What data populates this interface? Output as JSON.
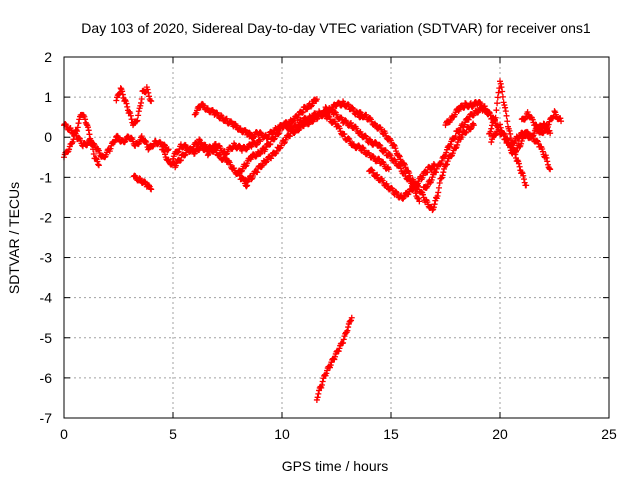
{
  "chart_data": {
    "type": "scatter",
    "title": "Day 103 of 2020, Sidereal Day-to-day VTEC variation (SDTVAR) for receiver ons1",
    "xlabel": "GPS time / hours",
    "ylabel": "SDTVAR / TECUs",
    "xlim": [
      0,
      25
    ],
    "ylim": [
      -7,
      2
    ],
    "xticks": [
      0,
      5,
      10,
      15,
      20,
      25
    ],
    "yticks": [
      -7,
      -6,
      -5,
      -4,
      -3,
      -2,
      -1,
      0,
      1,
      2
    ],
    "grid": true,
    "marker": "+",
    "series_color": "#ff0000",
    "series": [
      {
        "name": "s1",
        "points": [
          [
            0.0,
            -0.5
          ],
          [
            0.3,
            -0.2
          ],
          [
            0.6,
            0.2
          ],
          [
            0.8,
            0.6
          ],
          [
            1.0,
            0.4
          ],
          [
            1.2,
            0.0
          ],
          [
            1.4,
            -0.5
          ],
          [
            1.6,
            -0.7
          ]
        ]
      },
      {
        "name": "s2",
        "points": [
          [
            0.0,
            0.3
          ],
          [
            0.3,
            0.2
          ],
          [
            0.6,
            0.0
          ],
          [
            0.9,
            -0.2
          ],
          [
            1.2,
            -0.1
          ],
          [
            1.5,
            -0.3
          ],
          [
            1.8,
            -0.5
          ],
          [
            2.1,
            -0.3
          ],
          [
            2.4,
            0.0
          ]
        ]
      },
      {
        "name": "s3",
        "points": [
          [
            2.4,
            0.9
          ],
          [
            2.6,
            1.2
          ],
          [
            2.8,
            0.9
          ],
          [
            3.0,
            0.6
          ],
          [
            3.2,
            0.3
          ],
          [
            3.4,
            0.5
          ],
          [
            3.6,
            1.1
          ],
          [
            3.8,
            1.2
          ],
          [
            4.0,
            0.9
          ]
        ]
      },
      {
        "name": "s4",
        "points": [
          [
            3.2,
            -1.0
          ],
          [
            3.5,
            -1.05
          ],
          [
            3.8,
            -1.2
          ],
          [
            4.0,
            -1.3
          ]
        ]
      },
      {
        "name": "s5",
        "points": [
          [
            2.4,
            0.0
          ],
          [
            2.7,
            -0.1
          ],
          [
            3.0,
            0.0
          ],
          [
            3.3,
            -0.2
          ],
          [
            3.6,
            0.0
          ],
          [
            3.9,
            -0.3
          ],
          [
            4.2,
            -0.1
          ],
          [
            4.5,
            -0.2
          ],
          [
            4.8,
            -0.3
          ]
        ]
      },
      {
        "name": "s6",
        "points": [
          [
            4.5,
            -0.3
          ],
          [
            4.8,
            -0.6
          ],
          [
            5.1,
            -0.7
          ],
          [
            5.4,
            -0.5
          ],
          [
            5.7,
            -0.3
          ],
          [
            6.0,
            -0.4
          ],
          [
            6.3,
            -0.2
          ],
          [
            6.6,
            -0.4
          ],
          [
            6.9,
            -0.3
          ],
          [
            7.2,
            -0.5
          ],
          [
            7.5,
            -0.6
          ],
          [
            7.8,
            -0.8
          ],
          [
            8.1,
            -1.0
          ],
          [
            8.4,
            -1.2
          ]
        ]
      },
      {
        "name": "s7",
        "points": [
          [
            5.0,
            -0.5
          ],
          [
            5.4,
            -0.2
          ],
          [
            5.8,
            -0.3
          ],
          [
            6.2,
            -0.1
          ],
          [
            6.6,
            -0.3
          ],
          [
            7.0,
            -0.2
          ],
          [
            7.4,
            -0.4
          ],
          [
            7.8,
            -0.2
          ],
          [
            8.2,
            -0.3
          ],
          [
            8.6,
            -0.2
          ],
          [
            9.0,
            -0.1
          ]
        ]
      },
      {
        "name": "s8",
        "points": [
          [
            6.0,
            0.6
          ],
          [
            6.3,
            0.8
          ],
          [
            6.6,
            0.7
          ],
          [
            6.9,
            0.6
          ],
          [
            7.2,
            0.5
          ],
          [
            7.5,
            0.4
          ],
          [
            7.8,
            0.3
          ],
          [
            8.1,
            0.2
          ],
          [
            8.4,
            0.1
          ],
          [
            8.7,
            0.0
          ]
        ]
      },
      {
        "name": "s9",
        "points": [
          [
            8.0,
            -0.9
          ],
          [
            8.3,
            -0.7
          ],
          [
            8.6,
            -0.5
          ],
          [
            8.9,
            -0.4
          ],
          [
            9.2,
            -0.3
          ],
          [
            9.5,
            -0.1
          ],
          [
            9.8,
            0.1
          ],
          [
            10.1,
            0.3
          ],
          [
            10.4,
            0.4
          ],
          [
            10.7,
            0.5
          ],
          [
            11.0,
            0.7
          ],
          [
            11.3,
            0.8
          ],
          [
            11.6,
            0.95
          ]
        ]
      },
      {
        "name": "s10",
        "points": [
          [
            8.3,
            -1.1
          ],
          [
            8.6,
            -1.0
          ],
          [
            8.9,
            -0.8
          ],
          [
            9.2,
            -0.6
          ],
          [
            9.5,
            -0.5
          ],
          [
            9.8,
            -0.3
          ],
          [
            10.1,
            -0.1
          ],
          [
            10.4,
            0.1
          ],
          [
            10.7,
            0.2
          ],
          [
            11.0,
            0.3
          ],
          [
            11.3,
            0.4
          ],
          [
            11.6,
            0.5
          ],
          [
            11.9,
            0.6
          ],
          [
            12.2,
            0.7
          ],
          [
            12.5,
            0.8
          ],
          [
            12.8,
            0.85
          ],
          [
            13.1,
            0.75
          ],
          [
            13.4,
            0.6
          ],
          [
            13.7,
            0.5
          ]
        ]
      },
      {
        "name": "s11",
        "points": [
          [
            8.5,
            0.0
          ],
          [
            8.9,
            0.1
          ],
          [
            9.3,
            0.0
          ],
          [
            9.7,
            0.2
          ],
          [
            10.1,
            0.3
          ],
          [
            10.5,
            0.2
          ],
          [
            10.9,
            0.4
          ],
          [
            11.3,
            0.5
          ],
          [
            11.7,
            0.6
          ],
          [
            12.1,
            0.5
          ],
          [
            12.5,
            0.3
          ],
          [
            12.9,
            0.0
          ],
          [
            13.3,
            -0.2
          ],
          [
            13.7,
            -0.3
          ],
          [
            14.1,
            -0.5
          ],
          [
            14.5,
            -0.6
          ],
          [
            14.9,
            -0.8
          ]
        ]
      },
      {
        "name": "s12",
        "points": [
          [
            12.0,
            0.7
          ],
          [
            12.4,
            0.6
          ],
          [
            12.8,
            0.4
          ],
          [
            13.2,
            0.3
          ],
          [
            13.6,
            0.1
          ],
          [
            14.0,
            -0.1
          ],
          [
            14.4,
            -0.2
          ],
          [
            14.8,
            -0.4
          ],
          [
            15.2,
            -0.6
          ],
          [
            15.6,
            -0.9
          ],
          [
            16.0,
            -1.2
          ],
          [
            16.3,
            -1.6
          ]
        ]
      },
      {
        "name": "s13",
        "points": [
          [
            13.5,
            0.6
          ],
          [
            13.9,
            0.5
          ],
          [
            14.3,
            0.3
          ],
          [
            14.7,
            0.1
          ],
          [
            15.1,
            -0.2
          ],
          [
            15.4,
            -0.5
          ],
          [
            15.7,
            -0.8
          ],
          [
            16.0,
            -1.1
          ],
          [
            16.2,
            -1.3
          ]
        ]
      },
      {
        "name": "s14",
        "points": [
          [
            14.0,
            -0.8
          ],
          [
            14.4,
            -1.0
          ],
          [
            14.8,
            -1.2
          ],
          [
            15.2,
            -1.4
          ],
          [
            15.5,
            -1.5
          ],
          [
            15.8,
            -1.4
          ],
          [
            16.1,
            -1.2
          ],
          [
            16.4,
            -1.0
          ],
          [
            16.7,
            -0.8
          ],
          [
            17.0,
            -0.7
          ]
        ]
      },
      {
        "name": "s15",
        "points": [
          [
            16.0,
            -1.1
          ],
          [
            16.3,
            -1.3
          ],
          [
            16.6,
            -1.6
          ],
          [
            16.9,
            -1.8
          ],
          [
            17.1,
            -1.5
          ],
          [
            17.3,
            -1.0
          ],
          [
            17.6,
            -0.6
          ],
          [
            17.9,
            -0.3
          ],
          [
            18.2,
            0.0
          ],
          [
            18.5,
            0.2
          ],
          [
            18.8,
            0.3
          ]
        ]
      },
      {
        "name": "s16",
        "points": [
          [
            16.5,
            -1.3
          ],
          [
            16.8,
            -1.1
          ],
          [
            17.1,
            -0.8
          ],
          [
            17.4,
            -0.5
          ],
          [
            17.7,
            -0.2
          ],
          [
            18.0,
            0.1
          ],
          [
            18.3,
            0.3
          ],
          [
            18.6,
            0.5
          ],
          [
            18.9,
            0.65
          ],
          [
            19.2,
            0.7
          ],
          [
            19.5,
            0.6
          ]
        ]
      },
      {
        "name": "s17",
        "points": [
          [
            17.5,
            0.3
          ],
          [
            17.8,
            0.5
          ],
          [
            18.1,
            0.7
          ],
          [
            18.4,
            0.8
          ],
          [
            18.7,
            0.8
          ],
          [
            19.0,
            0.85
          ],
          [
            19.3,
            0.75
          ],
          [
            19.6,
            0.5
          ],
          [
            19.9,
            0.3
          ]
        ]
      },
      {
        "name": "s18",
        "points": [
          [
            19.5,
            0.1
          ],
          [
            19.8,
            0.5
          ],
          [
            20.0,
            1.4
          ],
          [
            20.2,
            0.8
          ],
          [
            20.4,
            0.2
          ],
          [
            20.6,
            -0.3
          ],
          [
            20.8,
            -0.6
          ],
          [
            21.0,
            -0.9
          ],
          [
            21.2,
            -1.2
          ]
        ]
      },
      {
        "name": "s19",
        "points": [
          [
            19.6,
            -0.1
          ],
          [
            19.9,
            0.2
          ],
          [
            20.2,
            0.0
          ],
          [
            20.5,
            -0.2
          ],
          [
            20.8,
            0.0
          ],
          [
            21.1,
            0.1
          ],
          [
            21.4,
            0.0
          ],
          [
            21.7,
            0.2
          ],
          [
            22.0,
            0.3
          ],
          [
            22.3,
            0.1
          ]
        ]
      },
      {
        "name": "s20",
        "points": [
          [
            20.0,
            0.3
          ],
          [
            20.3,
            -0.1
          ],
          [
            20.6,
            -0.4
          ],
          [
            20.9,
            -0.2
          ],
          [
            21.2,
            0.1
          ],
          [
            21.5,
            0.0
          ],
          [
            21.8,
            -0.2
          ],
          [
            22.1,
            -0.5
          ],
          [
            22.3,
            -0.8
          ]
        ]
      },
      {
        "name": "s21",
        "points": [
          [
            21.0,
            0.4
          ],
          [
            21.3,
            0.6
          ],
          [
            21.6,
            0.3
          ],
          [
            21.9,
            0.1
          ],
          [
            22.2,
            0.3
          ],
          [
            22.5,
            0.6
          ],
          [
            22.8,
            0.4
          ]
        ]
      },
      {
        "name": "s22",
        "points": [
          [
            11.6,
            -6.5
          ],
          [
            11.8,
            -6.2
          ],
          [
            12.0,
            -5.9
          ],
          [
            12.2,
            -5.7
          ],
          [
            12.4,
            -5.5
          ],
          [
            12.6,
            -5.3
          ],
          [
            12.8,
            -5.1
          ],
          [
            13.0,
            -4.8
          ],
          [
            13.2,
            -4.5
          ]
        ]
      }
    ]
  }
}
